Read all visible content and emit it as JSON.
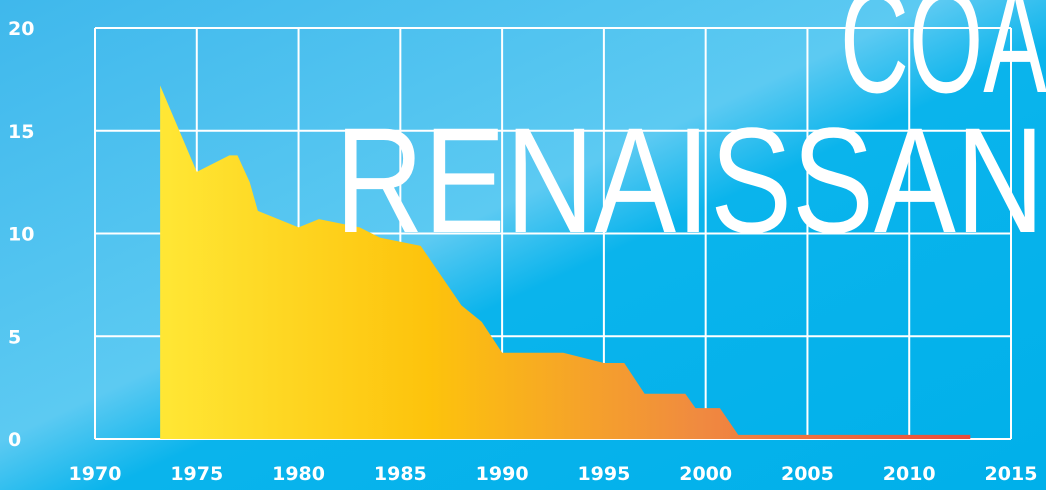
{
  "chart_data": {
    "type": "area",
    "title": [
      "COAL",
      "RENAISSANCE"
    ],
    "x": [
      1973.2,
      1975,
      1976.6,
      1977,
      1977.6,
      1978,
      1980,
      1981,
      1983,
      1984,
      1986,
      1988,
      1989,
      1990,
      1993,
      1995,
      1996,
      1997,
      1999,
      1999.5,
      2000.7,
      2001.6,
      2013
    ],
    "values": [
      17.2,
      13.0,
      13.8,
      13.8,
      12.5,
      11.1,
      10.3,
      10.7,
      10.3,
      9.8,
      9.4,
      6.5,
      5.7,
      4.2,
      4.2,
      3.7,
      3.7,
      2.2,
      2.2,
      1.5,
      1.5,
      0.2,
      0.2
    ],
    "colors": [
      "#ffe735",
      "#fdc30c",
      "#f08a40",
      "#ea4a3a"
    ],
    "xlim": [
      1970,
      2015
    ],
    "xticks": [
      1970,
      1975,
      1980,
      1985,
      1990,
      1995,
      2000,
      2005,
      2010,
      2015
    ],
    "ylim": [
      0,
      20
    ],
    "yticks": [
      0,
      5,
      10,
      15,
      20
    ],
    "grid": true
  }
}
